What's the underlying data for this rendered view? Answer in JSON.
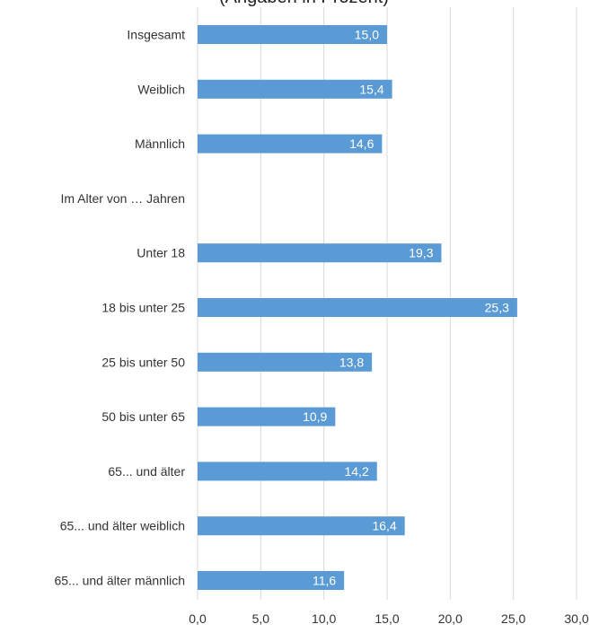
{
  "chart_data": {
    "type": "bar",
    "orientation": "horizontal",
    "title": "(Angaben in Prozent)",
    "xlabel": "",
    "ylabel": "",
    "categories": [
      "Insgesamt",
      "Weiblich",
      "Männlich",
      "Im Alter von … Jahren",
      "Unter 18",
      "18 bis unter 25",
      "25 bis unter 50",
      "50 bis unter 65",
      "65... und älter",
      "65... und älter weiblich",
      "65... und älter männlich"
    ],
    "values": [
      15.0,
      15.4,
      14.6,
      null,
      19.3,
      25.3,
      13.8,
      10.9,
      14.2,
      16.4,
      11.6
    ],
    "value_labels": [
      "15,0",
      "15,4",
      "14,6",
      "",
      "19,3",
      "25,3",
      "13,8",
      "10,9",
      "14,2",
      "16,4",
      "11,6"
    ],
    "xlim": [
      0,
      30
    ],
    "xticks": [
      0,
      5,
      10,
      15,
      20,
      25,
      30
    ],
    "xtick_labels": [
      "0,0",
      "5,0",
      "10,0",
      "15,0",
      "20,0",
      "25,0",
      "30,0"
    ],
    "grid": true,
    "legend": "none",
    "bar_color": "#5b9bd5",
    "grid_color": "#d9d9d9"
  }
}
